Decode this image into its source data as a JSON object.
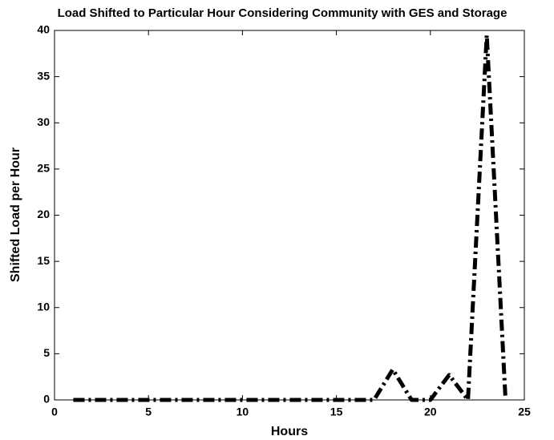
{
  "chart_data": {
    "type": "line",
    "title": "Load Shifted to Particular Hour Considering Community with GES and Storage",
    "x_label": "Hours",
    "y_label": "Shifted Load per Hour",
    "x": [
      1,
      2,
      3,
      4,
      5,
      6,
      7,
      8,
      9,
      10,
      11,
      12,
      13,
      14,
      15,
      16,
      17,
      18,
      19,
      20,
      21,
      22,
      23,
      24
    ],
    "series": [
      {
        "name": "Shifted Load",
        "color": "#000000",
        "values": [
          0,
          0,
          0,
          0,
          0,
          0,
          0,
          0,
          0,
          0,
          0,
          0,
          0,
          0,
          0,
          0,
          0,
          3.3,
          0,
          0,
          2.7,
          0,
          39.5,
          0
        ]
      }
    ],
    "xlim": [
      0,
      25
    ],
    "xticks": [
      0,
      5,
      10,
      15,
      20,
      25
    ],
    "ylim": [
      0,
      40
    ],
    "yticks": [
      0,
      5,
      10,
      15,
      20,
      25,
      30,
      35,
      40
    ],
    "grid": false
  }
}
